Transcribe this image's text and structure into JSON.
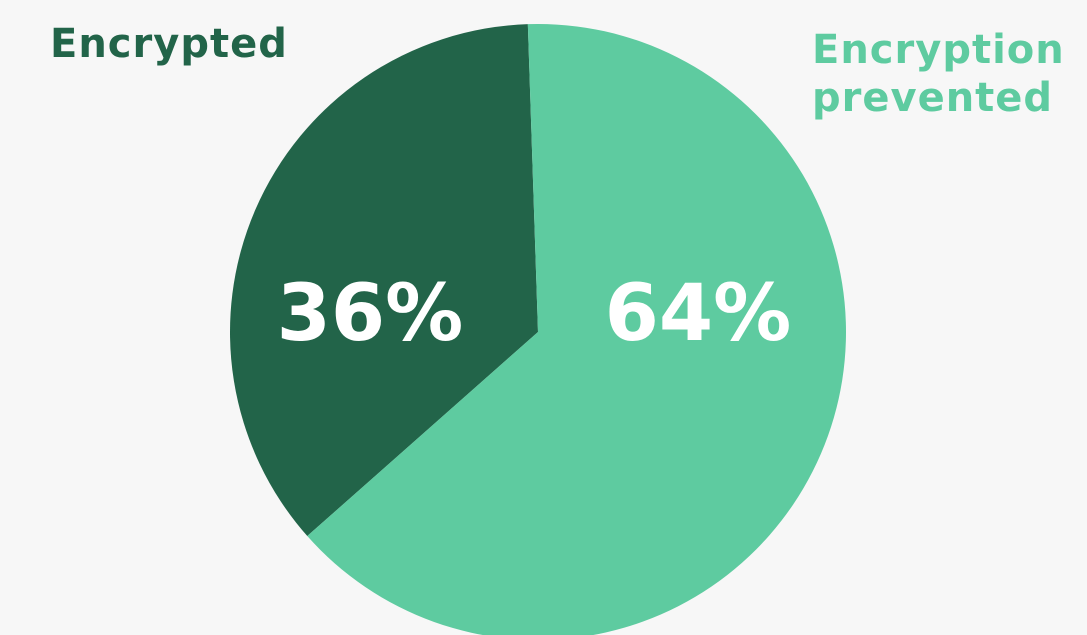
{
  "chart_data": {
    "type": "pie",
    "slices": [
      {
        "label": "Encrypted",
        "value": 36,
        "value_label": "36%",
        "color": "#226449"
      },
      {
        "label": "Encryption prevented",
        "value": 64,
        "value_label": "64%",
        "color": "#5ecba0"
      }
    ],
    "legend_placement": "around (top-left and top-right)"
  },
  "background_color": "#f7f7f7"
}
